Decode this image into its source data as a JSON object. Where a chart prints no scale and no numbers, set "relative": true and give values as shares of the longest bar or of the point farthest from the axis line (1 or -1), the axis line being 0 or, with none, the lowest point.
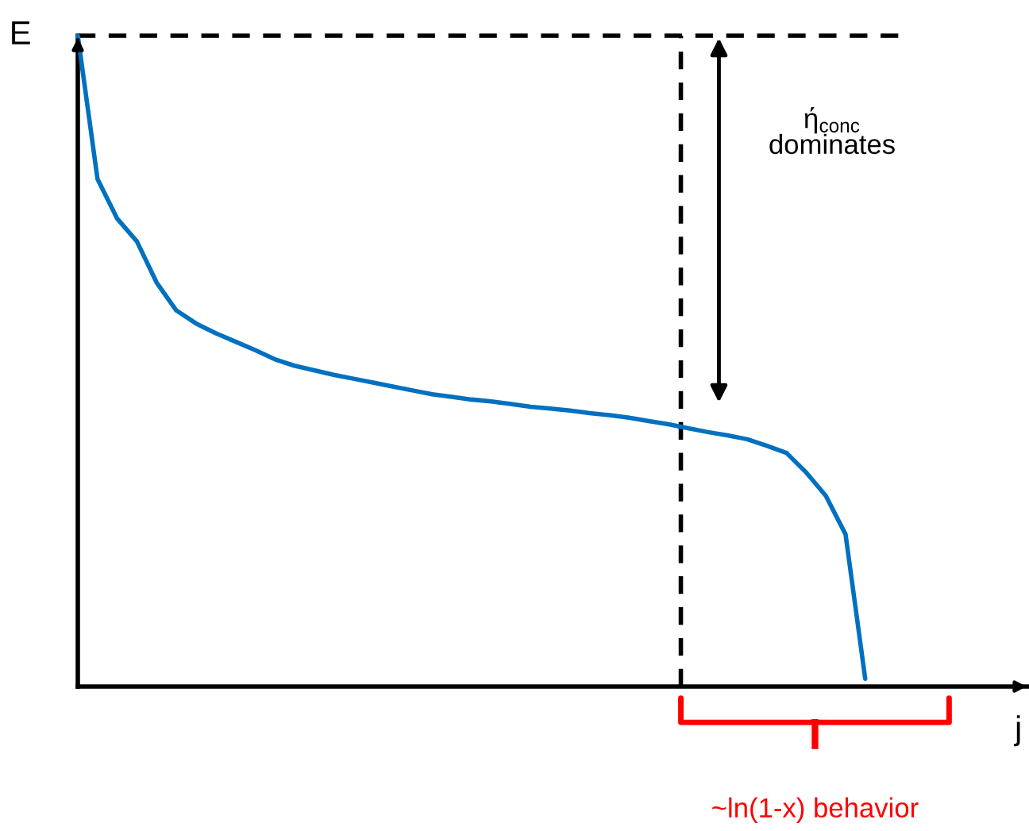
{
  "chart_data": {
    "type": "line",
    "relative": true,
    "xlabel": "j",
    "ylabel": "E",
    "marker": "none",
    "line_style": "solid",
    "categories": [
      null,
      null,
      null,
      null,
      null,
      null,
      null,
      null,
      null,
      null,
      null,
      null,
      null,
      null,
      null,
      null,
      null,
      null,
      null,
      null,
      null,
      null,
      null,
      null,
      null,
      null,
      null,
      null,
      null,
      null,
      null,
      null,
      null,
      null,
      null,
      null,
      null,
      null,
      null,
      null,
      null
    ],
    "series": [
      {
        "color": "#0070c0",
        "values": [
          1.0,
          0.78,
          0.719,
          0.684,
          0.621,
          0.578,
          0.558,
          0.543,
          0.53,
          0.517,
          0.503,
          0.493,
          0.486,
          0.479,
          0.473,
          0.467,
          0.461,
          0.455,
          0.449,
          0.445,
          0.441,
          0.438,
          0.434,
          0.43,
          0.427,
          0.424,
          0.42,
          0.417,
          0.413,
          0.408,
          0.403,
          0.397,
          0.391,
          0.386,
          0.38,
          0.37,
          0.359,
          0.329,
          0.293,
          0.234,
          0.012
        ]
      }
    ],
    "ref_lines": [
      {
        "axis": "y",
        "value": 1.0,
        "color": "#000000",
        "line_style": "dashed"
      }
    ],
    "annotations": [
      "ή$_{conc}$\ndominates",
      "~ln(1-x) behavior"
    ]
  }
}
